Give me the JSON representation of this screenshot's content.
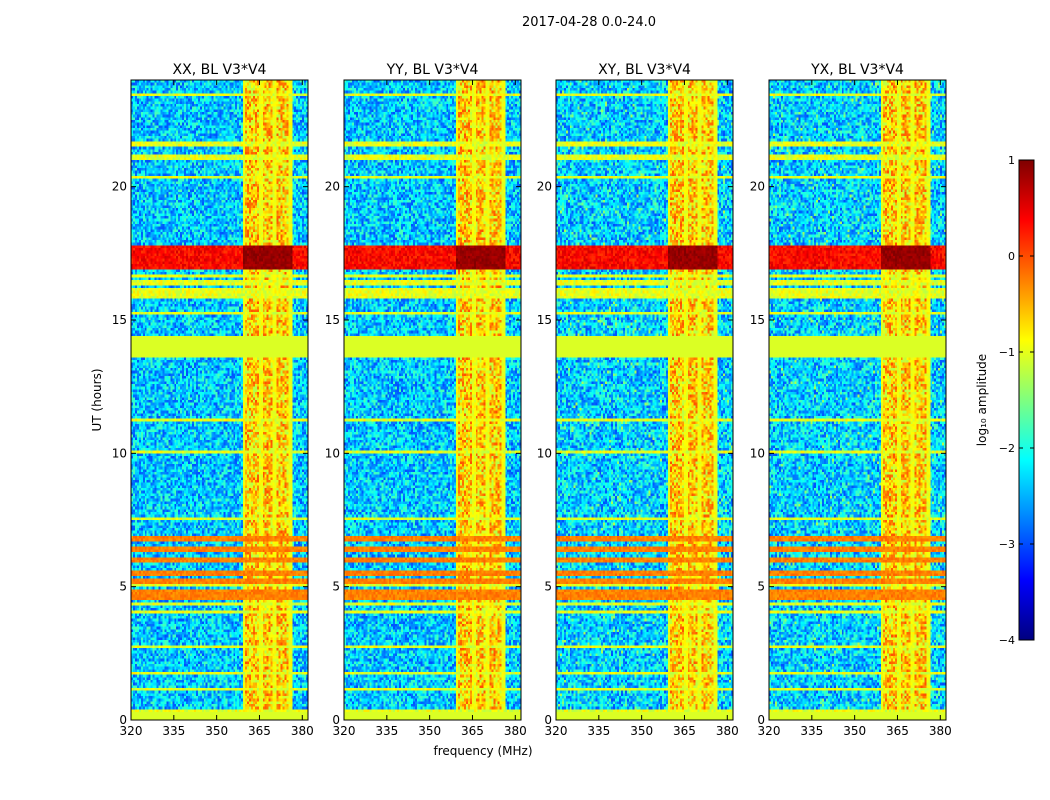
{
  "suptitle": "2017-04-28 0.0-24.0",
  "chart_data": {
    "type": "heatmap",
    "xlabel": "frequency (MHz)",
    "ylabel": "UT (hours)",
    "xlim": [
      320,
      382
    ],
    "ylim": [
      0,
      24
    ],
    "xticks": [
      320,
      335,
      350,
      365,
      380
    ],
    "yticks": [
      0,
      5,
      10,
      15,
      20
    ],
    "panels": [
      {
        "title": "XX, BL V3*V4",
        "polarization": "XX"
      },
      {
        "title": "YY, BL V3*V4",
        "polarization": "YY"
      },
      {
        "title": "XY, BL V3*V4",
        "polarization": "XY"
      },
      {
        "title": "YX, BL V3*V4",
        "polarization": "YX"
      }
    ],
    "features": {
      "rfi_band_mhz": [
        359.5,
        376.5
      ],
      "rfi_channels_mhz": [
        359.5,
        365.5,
        370.5,
        375.5
      ],
      "flagged_ut_hours": [
        [
          13.6,
          14.4
        ],
        [
          0.0,
          0.25
        ]
      ],
      "strong_rows_ut_hours": [
        4.6,
        4.8,
        5.2,
        5.5,
        6.0,
        6.4,
        6.8,
        17.0,
        17.3,
        17.6
      ],
      "burst_ut_hours": [
        16.9,
        17.8
      ]
    },
    "colorbar": {
      "label": "log₁₀ amplitude",
      "range": [
        -4,
        1
      ],
      "ticks": [
        "1",
        "0",
        "−1",
        "−2",
        "−3",
        "−4"
      ],
      "colormap": "jet",
      "stops": [
        "#00007f",
        "#0000ff",
        "#007fff",
        "#00ffff",
        "#7fff7f",
        "#ffff00",
        "#ff7f00",
        "#ff0000",
        "#7f0000"
      ]
    }
  },
  "colors": {
    "flag": "#99ff55",
    "axis": "#000000"
  }
}
